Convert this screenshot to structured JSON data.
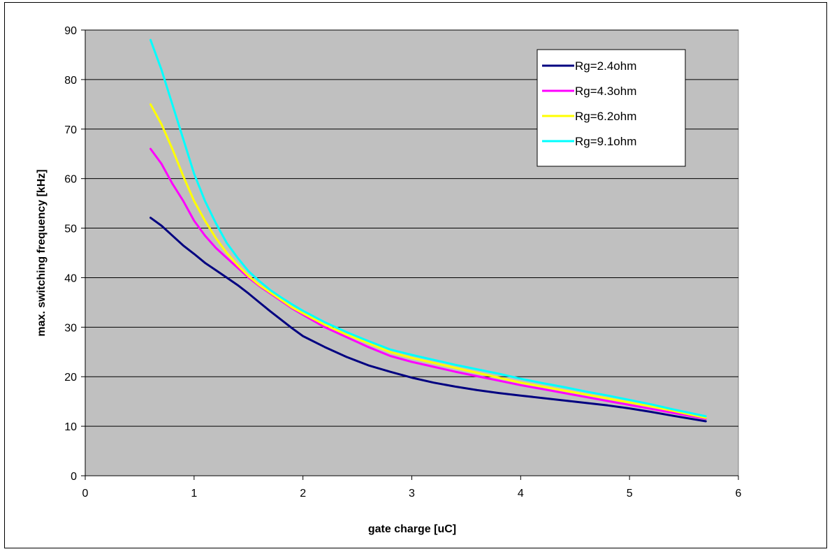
{
  "chart_data": {
    "type": "line",
    "title": "",
    "xlabel": "gate charge [uC]",
    "ylabel": "max. switching frequency [kHz]",
    "xlim": [
      0,
      6
    ],
    "ylim": [
      0,
      90
    ],
    "xticks": [
      0,
      1,
      2,
      3,
      4,
      5,
      6
    ],
    "yticks": [
      0,
      10,
      20,
      30,
      40,
      50,
      60,
      70,
      80,
      90
    ],
    "grid": "horizontal",
    "plot_background": "#c0c0c0",
    "legend_position": "top-right",
    "series": [
      {
        "name": "Rg=2.4ohm",
        "color": "#000080",
        "x": [
          0.6,
          0.7,
          0.8,
          0.9,
          1.0,
          1.1,
          1.2,
          1.3,
          1.4,
          1.5,
          1.6,
          1.7,
          1.8,
          1.9,
          2.0,
          2.2,
          2.4,
          2.6,
          2.8,
          3.0,
          3.2,
          3.4,
          3.6,
          3.8,
          4.0,
          4.2,
          4.4,
          4.6,
          4.8,
          5.0,
          5.2,
          5.4,
          5.7
        ],
        "y": [
          52.1,
          50.5,
          48.5,
          46.5,
          44.8,
          43.0,
          41.5,
          40.0,
          38.5,
          36.8,
          35.0,
          33.2,
          31.5,
          29.8,
          28.2,
          26.0,
          24.0,
          22.3,
          21.0,
          19.8,
          18.8,
          18.0,
          17.3,
          16.7,
          16.2,
          15.7,
          15.2,
          14.7,
          14.2,
          13.6,
          12.9,
          12.1,
          11.0
        ]
      },
      {
        "name": "Rg=4.3ohm",
        "color": "#ff00ff",
        "x": [
          0.6,
          0.7,
          0.8,
          0.9,
          1.0,
          1.1,
          1.2,
          1.3,
          1.4,
          1.5,
          1.6,
          1.7,
          1.8,
          1.9,
          2.0,
          2.2,
          2.4,
          2.6,
          2.8,
          3.0,
          3.2,
          3.4,
          3.6,
          3.8,
          4.0,
          4.2,
          4.4,
          4.6,
          4.8,
          5.0,
          5.2,
          5.4,
          5.7
        ],
        "y": [
          66.0,
          63.0,
          59.0,
          55.5,
          51.5,
          48.5,
          46.0,
          44.0,
          42.0,
          40.0,
          38.3,
          36.8,
          35.3,
          33.8,
          32.5,
          30.0,
          28.0,
          26.0,
          24.2,
          23.0,
          22.0,
          21.0,
          20.1,
          19.2,
          18.3,
          17.5,
          16.7,
          15.9,
          15.1,
          14.3,
          13.5,
          12.7,
          11.5
        ]
      },
      {
        "name": "Rg=6.2ohm",
        "color": "#ffff00",
        "x": [
          0.6,
          0.7,
          0.8,
          0.9,
          1.0,
          1.1,
          1.2,
          1.3,
          1.4,
          1.5,
          1.6,
          1.7,
          1.8,
          1.9,
          2.0,
          2.2,
          2.4,
          2.6,
          2.8,
          3.0,
          3.2,
          3.4,
          3.6,
          3.8,
          4.0,
          4.2,
          4.4,
          4.6,
          4.8,
          5.0,
          5.2,
          5.4,
          5.7
        ],
        "y": [
          75.0,
          71.0,
          66.0,
          60.5,
          55.5,
          51.5,
          48.0,
          45.0,
          42.5,
          40.3,
          38.5,
          37.0,
          35.5,
          34.0,
          32.8,
          30.5,
          28.5,
          26.8,
          25.0,
          23.8,
          22.8,
          21.8,
          20.8,
          19.8,
          18.8,
          18.0,
          17.2,
          16.4,
          15.6,
          14.8,
          14.0,
          13.1,
          11.7
        ]
      },
      {
        "name": "Rg=9.1ohm",
        "color": "#00ffff",
        "x": [
          0.6,
          0.7,
          0.8,
          0.9,
          1.0,
          1.1,
          1.2,
          1.3,
          1.4,
          1.5,
          1.6,
          1.7,
          1.8,
          1.9,
          2.0,
          2.2,
          2.4,
          2.6,
          2.8,
          3.0,
          3.2,
          3.4,
          3.6,
          3.8,
          4.0,
          4.2,
          4.4,
          4.6,
          4.8,
          5.0,
          5.2,
          5.4,
          5.7
        ],
        "y": [
          88.0,
          82.0,
          75.0,
          68.0,
          61.0,
          55.5,
          51.0,
          47.0,
          44.0,
          41.3,
          39.3,
          37.5,
          36.0,
          34.6,
          33.3,
          31.0,
          29.0,
          27.2,
          25.5,
          24.4,
          23.4,
          22.4,
          21.5,
          20.6,
          19.6,
          18.7,
          17.9,
          17.0,
          16.2,
          15.3,
          14.4,
          13.4,
          12.0
        ]
      }
    ]
  }
}
